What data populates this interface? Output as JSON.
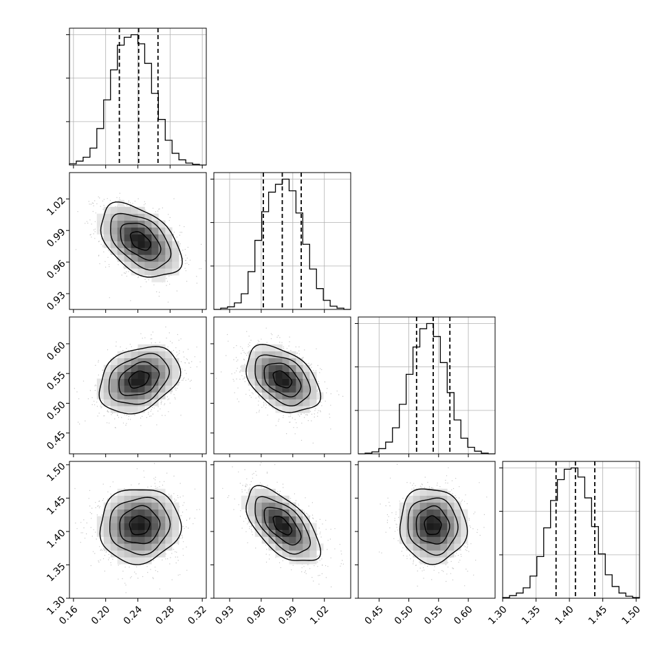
{
  "chart_data": {
    "type": "corner",
    "colors": {
      "line": "#000000",
      "grid": "#b0b0b0",
      "sample": "#808080",
      "background": "#ffffff"
    },
    "parameters": [
      {
        "id": "p0",
        "range": [
          0.155,
          0.325
        ],
        "ticks": [
          0.16,
          0.2,
          0.24,
          0.28,
          0.32
        ],
        "tick_labels": [
          "0.16",
          "0.20",
          "0.24",
          "0.28",
          "0.32"
        ],
        "quantiles": [
          0.217,
          0.241,
          0.265
        ],
        "hist_peak": 0.243,
        "hist_scale": 1.05
      },
      {
        "id": "p1",
        "range": [
          0.915,
          1.045
        ],
        "ticks": [
          0.93,
          0.96,
          0.99,
          1.02
        ],
        "tick_labels": [
          "0.93",
          "0.96",
          "0.99",
          "1.02"
        ],
        "quantiles": [
          0.962,
          0.98,
          0.998
        ],
        "hist_peak": 0.979,
        "hist_scale": 1.05
      },
      {
        "id": "p2",
        "range": [
          0.415,
          0.645
        ],
        "ticks": [
          0.45,
          0.5,
          0.55,
          0.6
        ],
        "tick_labels": [
          "0.45",
          "0.50",
          "0.55",
          "0.60"
        ],
        "quantiles": [
          0.513,
          0.541,
          0.569
        ],
        "hist_peak": 0.54,
        "hist_scale": 1.05
      },
      {
        "id": "p3",
        "range": [
          1.3,
          1.505
        ],
        "ticks": [
          1.3,
          1.35,
          1.4,
          1.45,
          1.5
        ],
        "tick_labels": [
          "1.30",
          "1.35",
          "1.40",
          "1.45",
          "1.50"
        ],
        "quantiles": [
          1.38,
          1.409,
          1.438
        ],
        "hist_peak": 1.409,
        "hist_scale": 1.05
      }
    ],
    "histograms": [
      {
        "param": "p0",
        "bins": [
          0.155,
          0.1635,
          0.172,
          0.1805,
          0.189,
          0.1975,
          0.206,
          0.2145,
          0.223,
          0.2315,
          0.24,
          0.2485,
          0.257,
          0.2655,
          0.274,
          0.2825,
          0.291,
          0.2995,
          0.308,
          0.3165,
          0.325
        ],
        "counts": [
          0.01,
          0.03,
          0.06,
          0.13,
          0.28,
          0.5,
          0.73,
          0.92,
          0.98,
          1.0,
          0.93,
          0.78,
          0.55,
          0.35,
          0.19,
          0.09,
          0.04,
          0.015,
          0.005,
          0.0
        ]
      },
      {
        "param": "p1",
        "bins": [
          0.915,
          0.9215,
          0.928,
          0.9345,
          0.941,
          0.9475,
          0.954,
          0.9605,
          0.967,
          0.9735,
          0.98,
          0.9865,
          0.993,
          0.9995,
          1.006,
          1.0125,
          1.019,
          1.0255,
          1.032,
          1.0385,
          1.045
        ],
        "counts": [
          0.0,
          0.01,
          0.02,
          0.05,
          0.12,
          0.29,
          0.53,
          0.75,
          0.9,
          0.96,
          1.0,
          0.91,
          0.74,
          0.5,
          0.31,
          0.16,
          0.07,
          0.025,
          0.01,
          0.0
        ]
      },
      {
        "param": "p2",
        "bins": [
          0.415,
          0.4265,
          0.438,
          0.4495,
          0.461,
          0.4725,
          0.484,
          0.4955,
          0.507,
          0.5185,
          0.53,
          0.5415,
          0.553,
          0.5645,
          0.576,
          0.5875,
          0.599,
          0.6105,
          0.622,
          0.6335,
          0.645
        ],
        "counts": [
          0.0,
          0.005,
          0.015,
          0.04,
          0.09,
          0.2,
          0.38,
          0.61,
          0.82,
          0.96,
          1.0,
          0.9,
          0.7,
          0.47,
          0.26,
          0.12,
          0.05,
          0.02,
          0.005,
          0.0
        ]
      },
      {
        "param": "p3",
        "bins": [
          1.3,
          1.31025,
          1.3205,
          1.33075,
          1.341,
          1.35125,
          1.3615,
          1.37175,
          1.382,
          1.39225,
          1.4025,
          1.41275,
          1.423,
          1.43325,
          1.4435,
          1.45375,
          1.464,
          1.47425,
          1.4845,
          1.49475,
          1.505
        ],
        "counts": [
          0.005,
          0.02,
          0.04,
          0.08,
          0.17,
          0.32,
          0.54,
          0.75,
          0.91,
          0.99,
          1.0,
          0.93,
          0.77,
          0.55,
          0.34,
          0.18,
          0.09,
          0.04,
          0.015,
          0.005
        ]
      }
    ],
    "pairs": [
      {
        "x": "p0",
        "y": "p1",
        "mean": [
          0.243,
          0.98
        ],
        "sd": [
          0.025,
          0.0175
        ],
        "corr": -0.45
      },
      {
        "x": "p0",
        "y": "p2",
        "mean": [
          0.241,
          0.54
        ],
        "sd": [
          0.025,
          0.028
        ],
        "corr": 0.3
      },
      {
        "x": "p1",
        "y": "p2",
        "mean": [
          0.98,
          0.54
        ],
        "sd": [
          0.0175,
          0.028
        ],
        "corr": -0.4
      },
      {
        "x": "p0",
        "y": "p3",
        "mean": [
          0.242,
          1.409
        ],
        "sd": [
          0.025,
          0.028
        ],
        "corr": 0.05
      },
      {
        "x": "p1",
        "y": "p3",
        "mean": [
          0.98,
          1.409
        ],
        "sd": [
          0.0175,
          0.028
        ],
        "corr": -0.6
      },
      {
        "x": "p2",
        "y": "p3",
        "mean": [
          0.54,
          1.409
        ],
        "sd": [
          0.028,
          0.028
        ],
        "corr": -0.05
      }
    ],
    "contour_levels_sigma": [
      0.5,
      1.0,
      1.5,
      2.0
    ],
    "grid": true
  }
}
